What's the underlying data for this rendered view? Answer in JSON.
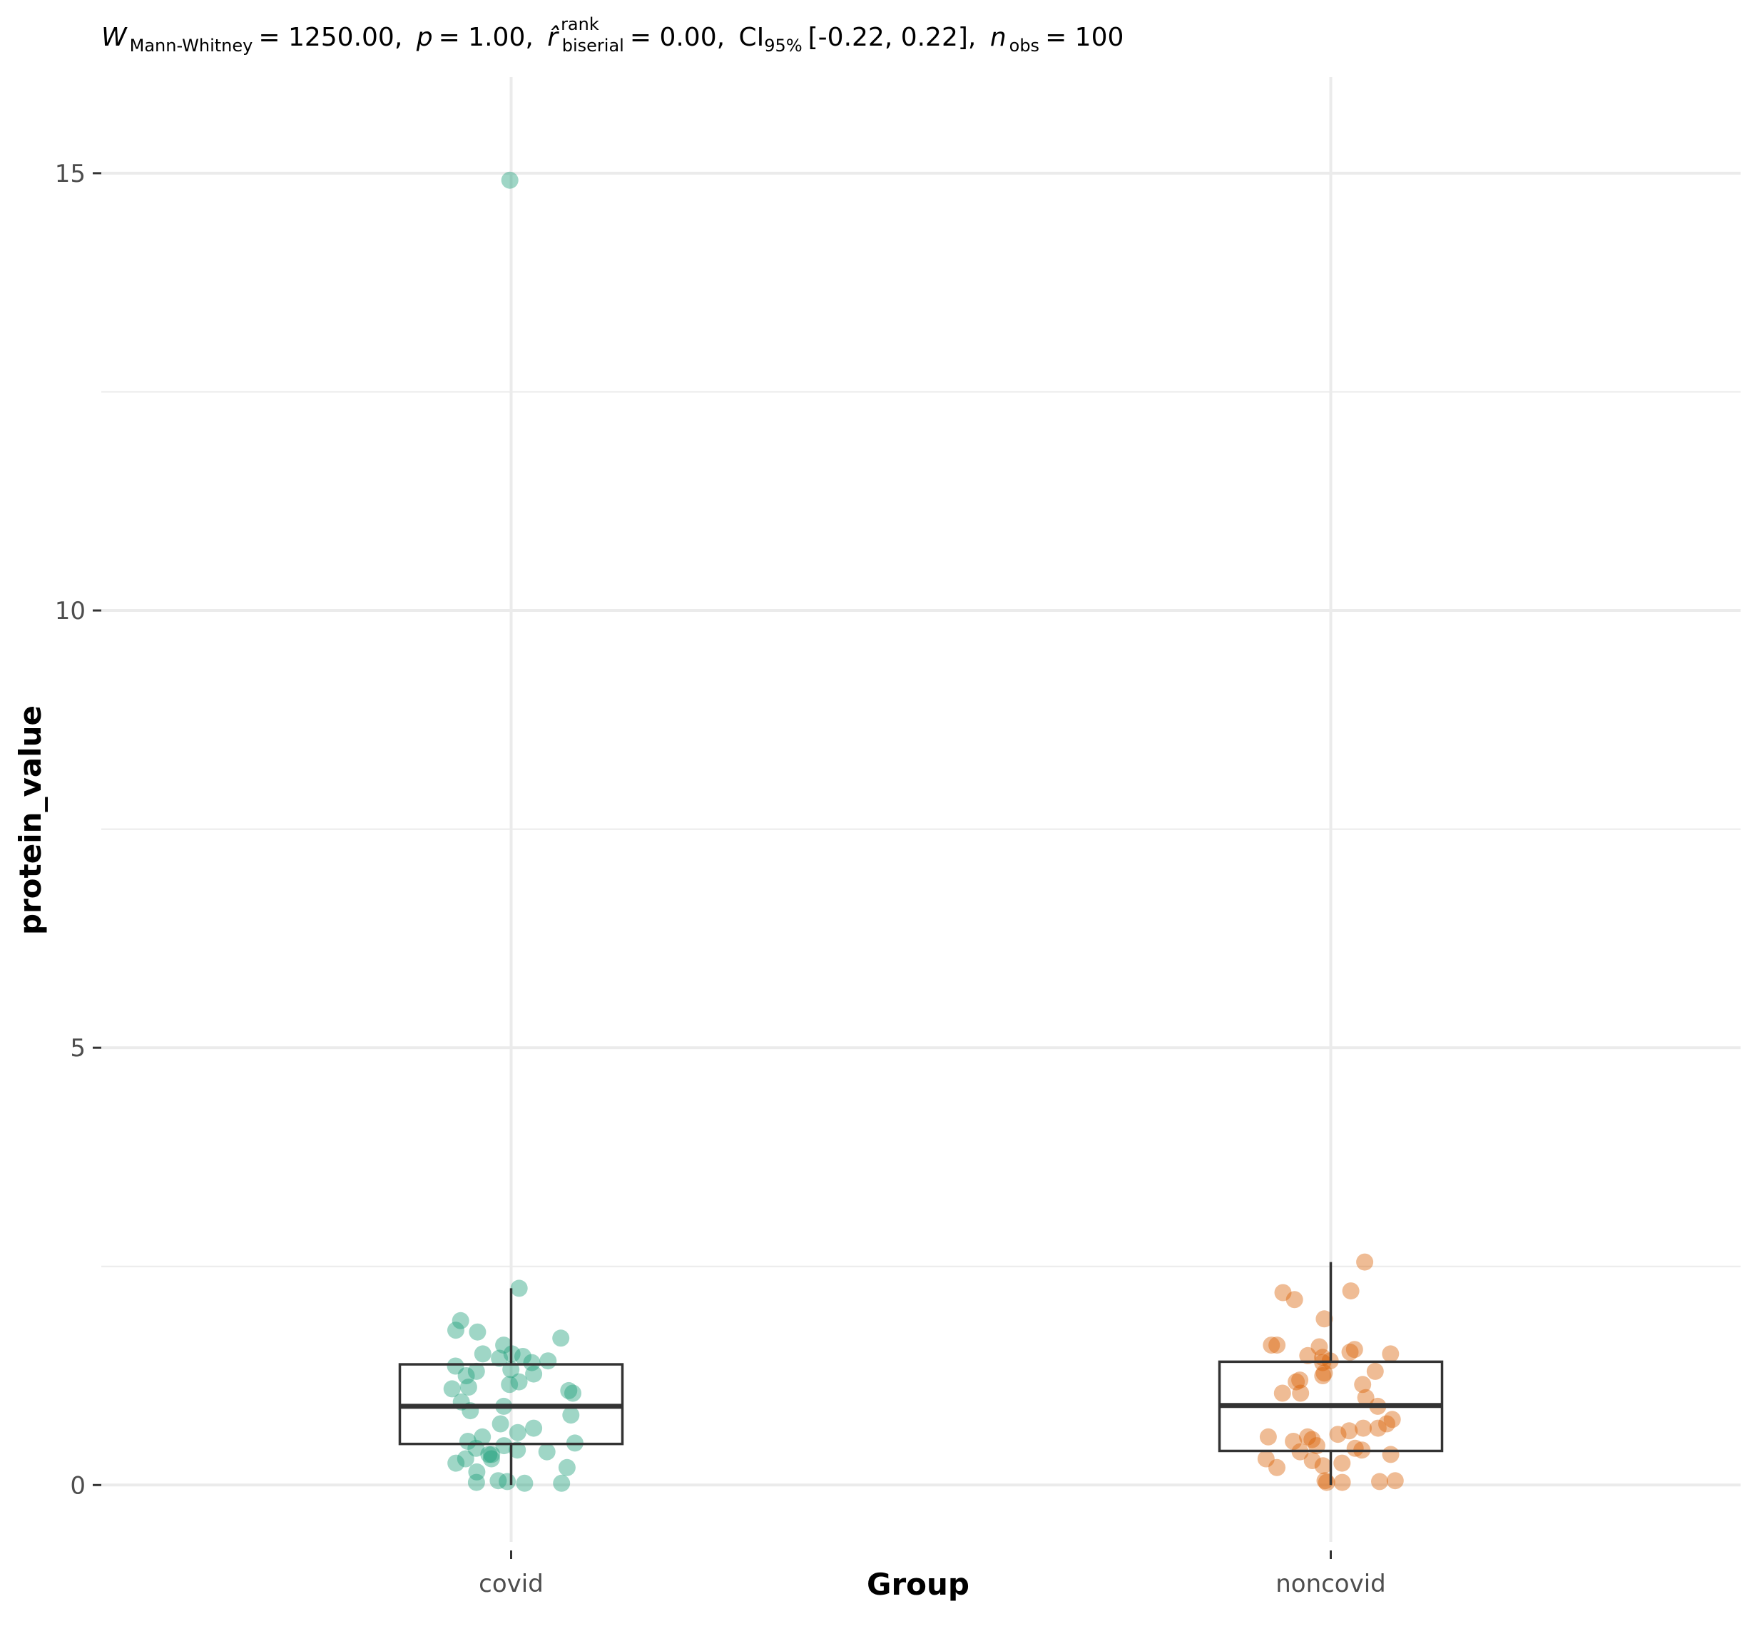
{
  "chart_data": {
    "type": "box",
    "subtitle": {
      "W_symbol": "W",
      "W_sub": "Mann-Whitney",
      "W_value": "= 1250.00,",
      "p_symbol": "p",
      "p_value": "= 1.00,",
      "r_symbol": "r̂",
      "r_sup": "rank",
      "r_sub": "biserial",
      "r_value": "= 0.00,",
      "ci_symbol": "CI",
      "ci_sub": "95%",
      "ci_value": "[-0.22, 0.22],",
      "n_symbol": "n",
      "n_sub": "obs",
      "n_value": "= 100"
    },
    "xlabel": "Group",
    "ylabel": "protein_value",
    "categories": [
      "covid",
      "noncovid"
    ],
    "ylim": [
      -0.65,
      16.1
    ],
    "yticks": [
      0,
      5,
      10,
      15
    ],
    "ytick_labels": [
      "0",
      "5",
      "10",
      "15"
    ],
    "grid": true,
    "legend": "none",
    "colors": {
      "covid": "#1b9e77",
      "noncovid": "#d95f02",
      "box": "#333333",
      "grid": "#ebebeb"
    },
    "boxes": [
      {
        "group": "covid",
        "lower_whisker": 0.0,
        "q1": 0.47,
        "median": 0.9,
        "q3": 1.38,
        "upper_whisker": 2.25
      },
      {
        "group": "noncovid",
        "lower_whisker": 0.0,
        "q1": 0.39,
        "median": 0.91,
        "q3": 1.41,
        "upper_whisker": 2.55
      }
    ],
    "points": [
      {
        "group": "covid",
        "values": [
          14.92,
          2.25,
          1.88,
          1.75,
          1.6,
          1.5,
          1.77,
          1.68,
          1.47,
          1.45,
          1.5,
          1.42,
          1.4,
          1.36,
          1.32,
          1.3,
          1.27,
          1.25,
          1.18,
          1.15,
          1.12,
          1.1,
          1.08,
          1.05,
          0.95,
          0.9,
          0.8,
          0.85,
          0.7,
          0.6,
          0.65,
          0.55,
          0.5,
          0.48,
          0.45,
          0.42,
          0.4,
          0.35,
          0.3,
          0.38,
          0.35,
          0.3,
          0.25,
          0.2,
          0.15,
          0.02,
          0.04,
          0.03,
          0.02,
          0.05
        ]
      },
      {
        "group": "noncovid",
        "values": [
          2.55,
          2.22,
          2.2,
          2.12,
          1.9,
          1.6,
          1.6,
          1.58,
          1.55,
          1.52,
          1.5,
          1.48,
          1.46,
          1.42,
          1.4,
          1.3,
          1.28,
          1.25,
          1.2,
          1.18,
          1.15,
          1.05,
          1.05,
          1.0,
          0.9,
          0.75,
          0.7,
          0.65,
          0.65,
          0.62,
          0.58,
          0.55,
          0.55,
          0.52,
          0.5,
          0.45,
          0.42,
          0.4,
          0.38,
          0.35,
          0.3,
          0.28,
          0.25,
          0.22,
          0.2,
          0.05,
          0.05,
          0.04,
          0.03,
          0.03
        ]
      }
    ]
  }
}
